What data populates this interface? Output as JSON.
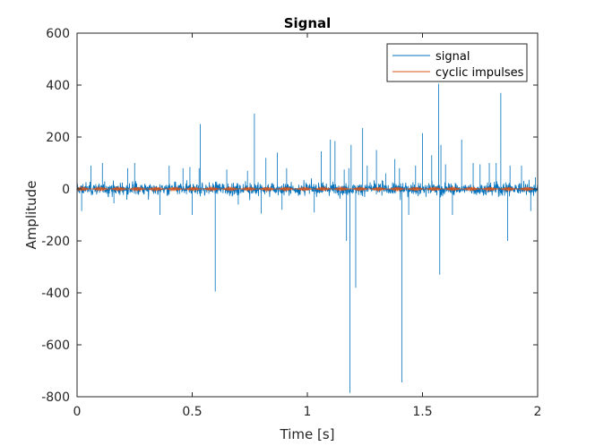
{
  "chart_data": {
    "type": "line",
    "title": "Signal",
    "xlabel": "Time [s]",
    "ylabel": "Amplitude",
    "xlim": [
      0,
      2
    ],
    "ylim": [
      -800,
      600
    ],
    "xticks": [
      0,
      0.5,
      1,
      1.5,
      2
    ],
    "xtick_labels": [
      "0",
      "0.5",
      "1",
      "1.5",
      "2"
    ],
    "yticks": [
      -800,
      -600,
      -400,
      -200,
      0,
      200,
      400,
      600
    ],
    "ytick_labels": [
      "-800",
      "-600",
      "-400",
      "-200",
      "0",
      "200",
      "400",
      "600"
    ],
    "grid": false,
    "legend_position": "top-right",
    "colors": {
      "signal": "#0072BD",
      "cyclic_impulses": "#D95319"
    },
    "series": [
      {
        "name": "signal",
        "color": "#0072BD",
        "noise_amplitude_approx": 30,
        "spikes": [
          {
            "x": 0.02,
            "y": -85
          },
          {
            "x": 0.06,
            "y": 90
          },
          {
            "x": 0.11,
            "y": 100
          },
          {
            "x": 0.16,
            "y": -55
          },
          {
            "x": 0.22,
            "y": 80
          },
          {
            "x": 0.25,
            "y": 100
          },
          {
            "x": 0.36,
            "y": -100
          },
          {
            "x": 0.4,
            "y": 90
          },
          {
            "x": 0.46,
            "y": 80
          },
          {
            "x": 0.49,
            "y": 85
          },
          {
            "x": 0.5,
            "y": -100
          },
          {
            "x": 0.53,
            "y": 80
          },
          {
            "x": 0.535,
            "y": 250
          },
          {
            "x": 0.6,
            "y": -395
          },
          {
            "x": 0.65,
            "y": 75
          },
          {
            "x": 0.7,
            "y": -60
          },
          {
            "x": 0.74,
            "y": 70
          },
          {
            "x": 0.77,
            "y": 290
          },
          {
            "x": 0.8,
            "y": -95
          },
          {
            "x": 0.82,
            "y": 120
          },
          {
            "x": 0.87,
            "y": 140
          },
          {
            "x": 0.89,
            "y": -80
          },
          {
            "x": 0.91,
            "y": 80
          },
          {
            "x": 1.03,
            "y": -90
          },
          {
            "x": 1.06,
            "y": 145
          },
          {
            "x": 1.1,
            "y": 190
          },
          {
            "x": 1.12,
            "y": 185
          },
          {
            "x": 1.16,
            "y": 75
          },
          {
            "x": 1.17,
            "y": -200
          },
          {
            "x": 1.18,
            "y": 80
          },
          {
            "x": 1.185,
            "y": -785
          },
          {
            "x": 1.19,
            "y": 170
          },
          {
            "x": 1.21,
            "y": -380
          },
          {
            "x": 1.24,
            "y": 235
          },
          {
            "x": 1.26,
            "y": 90
          },
          {
            "x": 1.3,
            "y": 150
          },
          {
            "x": 1.34,
            "y": 60
          },
          {
            "x": 1.38,
            "y": 115
          },
          {
            "x": 1.4,
            "y": 80
          },
          {
            "x": 1.41,
            "y": -745
          },
          {
            "x": 1.44,
            "y": -100
          },
          {
            "x": 1.47,
            "y": 90
          },
          {
            "x": 1.5,
            "y": 215
          },
          {
            "x": 1.54,
            "y": 130
          },
          {
            "x": 1.57,
            "y": 405
          },
          {
            "x": 1.575,
            "y": -330
          },
          {
            "x": 1.58,
            "y": 170
          },
          {
            "x": 1.6,
            "y": 95
          },
          {
            "x": 1.63,
            "y": -100
          },
          {
            "x": 1.67,
            "y": 190
          },
          {
            "x": 1.72,
            "y": 100
          },
          {
            "x": 1.75,
            "y": 95
          },
          {
            "x": 1.79,
            "y": 100
          },
          {
            "x": 1.82,
            "y": 100
          },
          {
            "x": 1.84,
            "y": 370
          },
          {
            "x": 1.87,
            "y": -200
          },
          {
            "x": 1.88,
            "y": 90
          },
          {
            "x": 1.93,
            "y": 90
          },
          {
            "x": 1.97,
            "y": -85
          },
          {
            "x": 1.99,
            "y": 45
          }
        ]
      },
      {
        "name": "cyclic impulses",
        "color": "#D95319",
        "approx_amplitude": 8
      }
    ]
  }
}
